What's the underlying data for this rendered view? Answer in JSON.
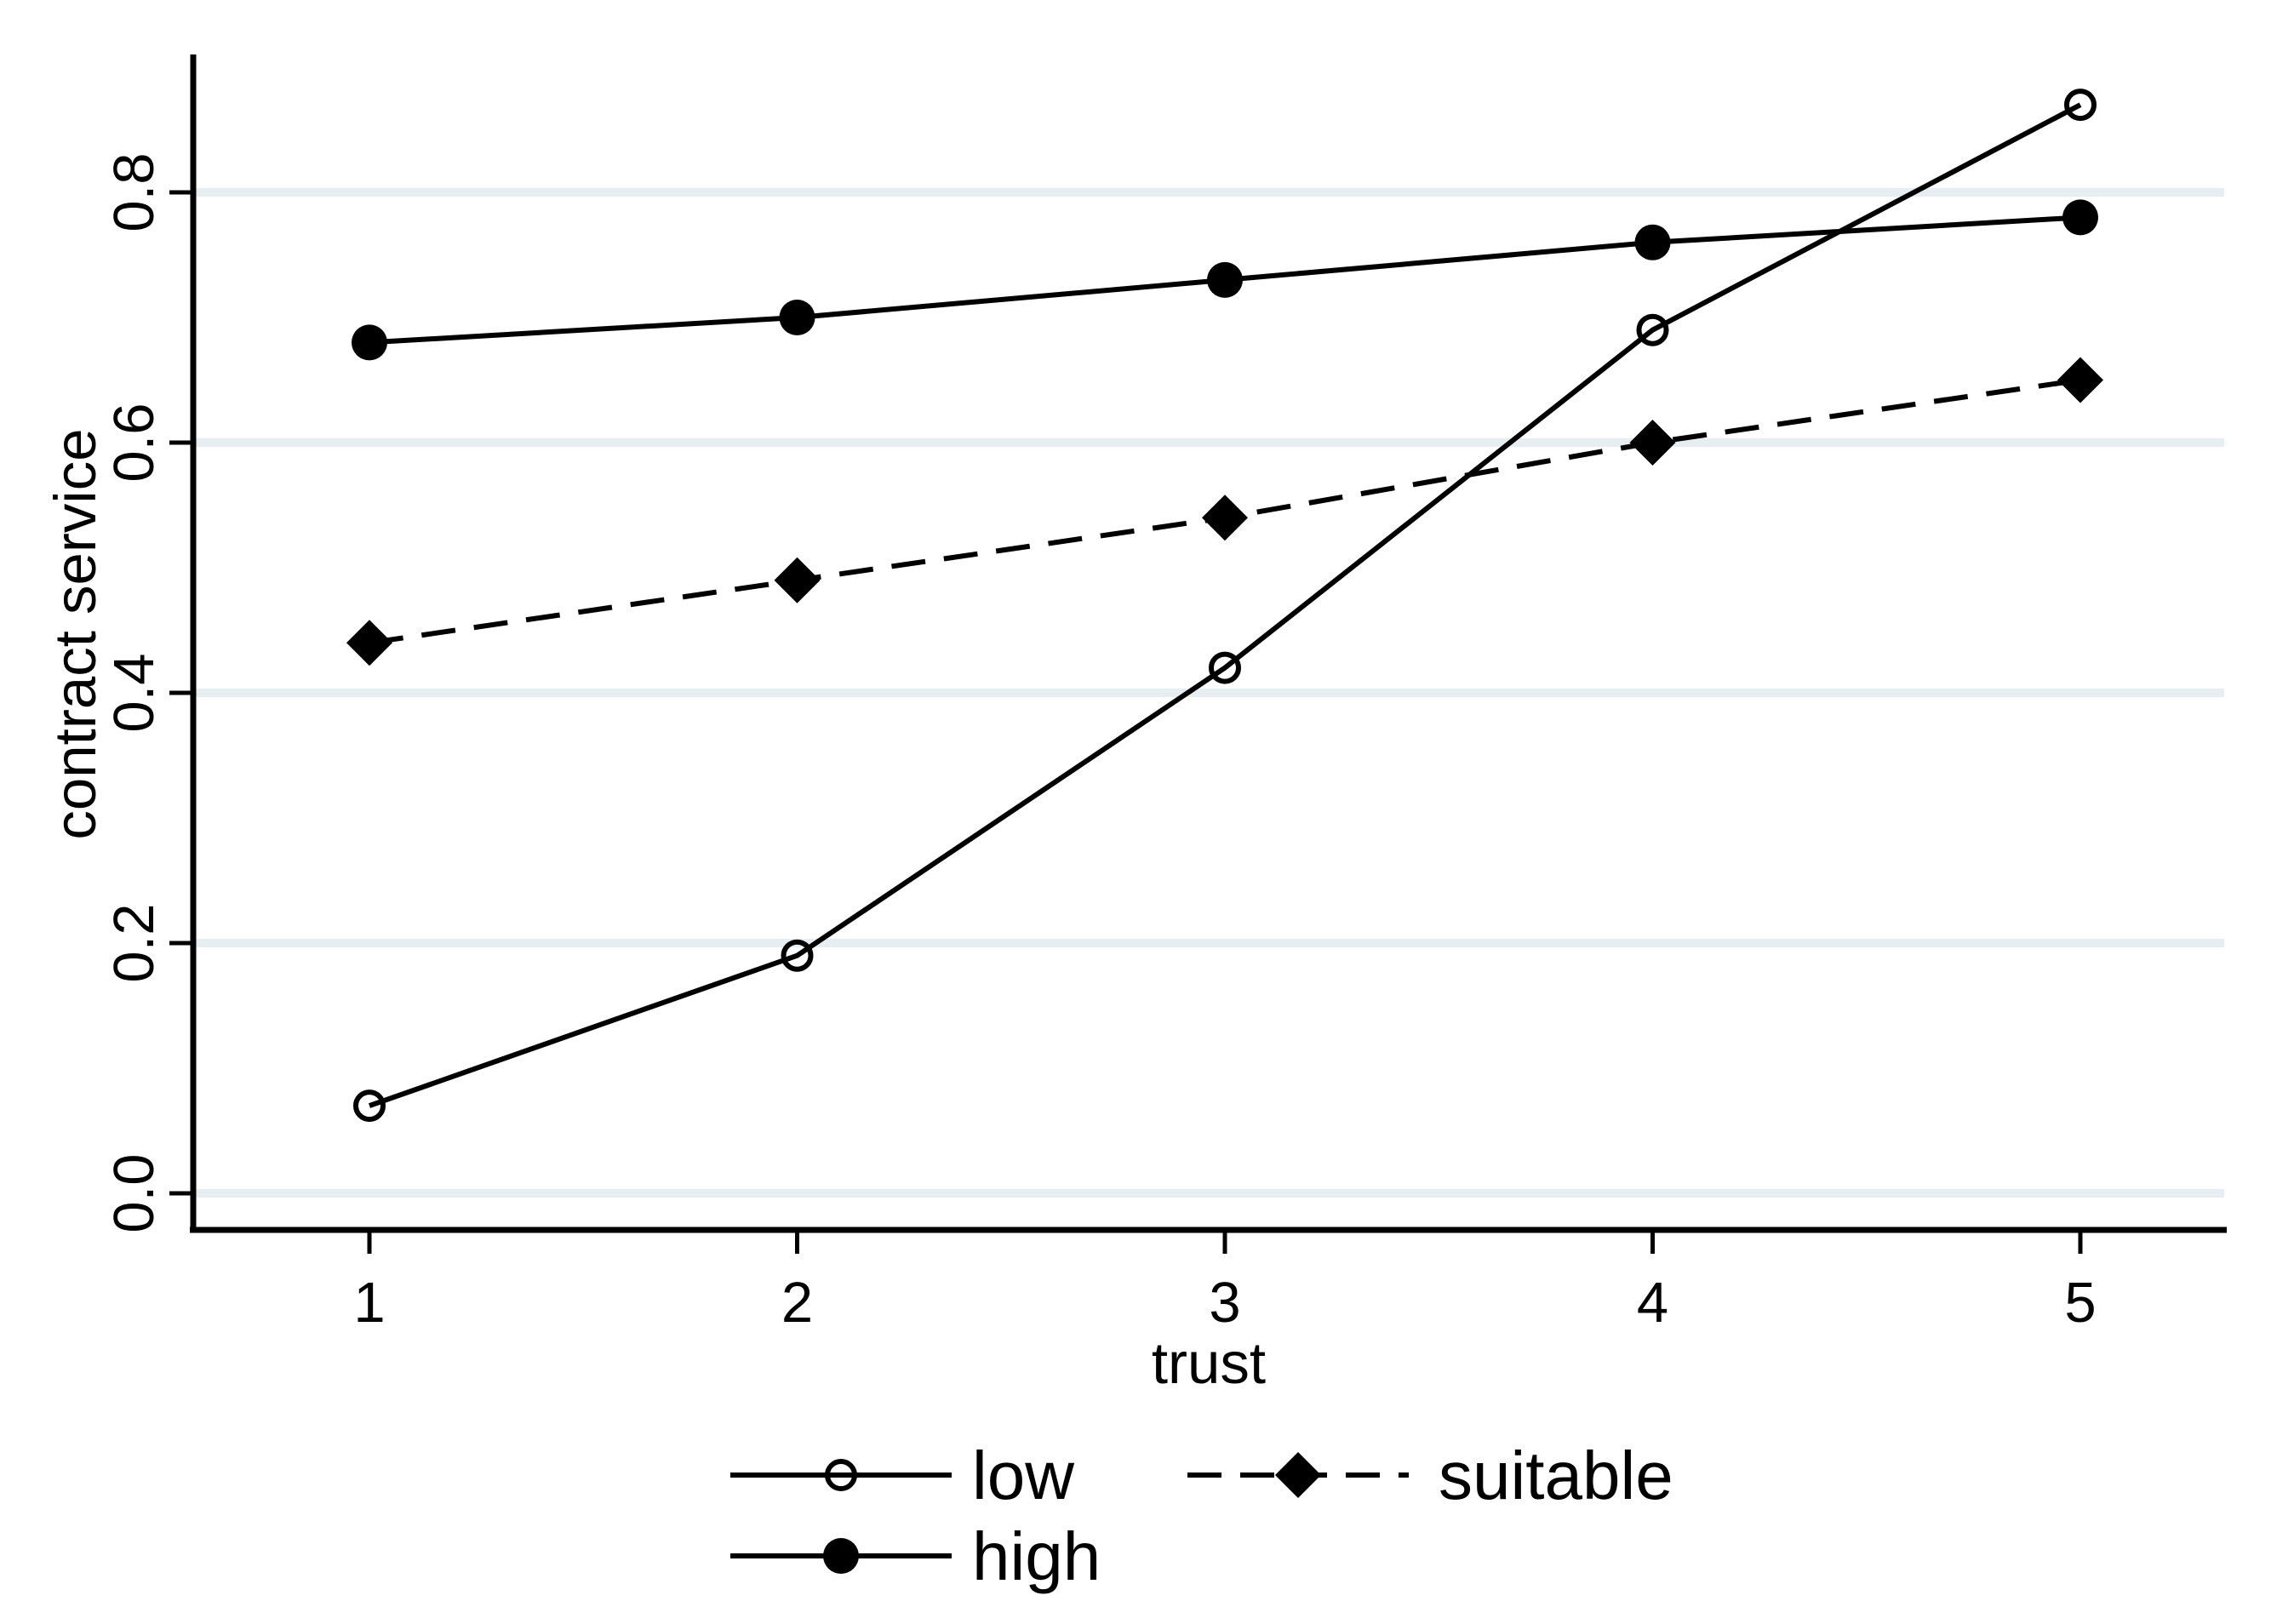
{
  "chart_data": {
    "type": "line",
    "title": "",
    "xlabel": "trust",
    "ylabel": "contract service",
    "x": [
      1,
      2,
      3,
      4,
      5
    ],
    "series": [
      {
        "name": "low",
        "values": [
          0.07,
          0.19,
          0.42,
          0.69,
          0.87
        ],
        "marker": "open-circle",
        "line_style": "solid"
      },
      {
        "name": "suitable",
        "values": [
          0.44,
          0.49,
          0.54,
          0.6,
          0.65
        ],
        "marker": "filled-diamond",
        "line_style": "dashed"
      },
      {
        "name": "high",
        "values": [
          0.68,
          0.7,
          0.73,
          0.76,
          0.78
        ],
        "marker": "filled-circle",
        "line_style": "solid"
      }
    ],
    "axes": {
      "x": {
        "ticks": [
          1,
          2,
          3,
          4,
          5
        ],
        "tick_format": "integer"
      },
      "y": {
        "ticks": [
          0.0,
          0.2,
          0.4,
          0.6,
          0.8
        ],
        "tick_format": "one-decimal",
        "range_shown": [
          0.0,
          0.8
        ]
      }
    },
    "grid": "horizontal-only",
    "legend_position": "bottom",
    "legend_rows": [
      [
        "low",
        "suitable"
      ],
      [
        "high"
      ]
    ],
    "colors": {
      "line": "#000000",
      "text": "#000000",
      "grid": "#e7eef1",
      "background": "#ffffff"
    }
  }
}
